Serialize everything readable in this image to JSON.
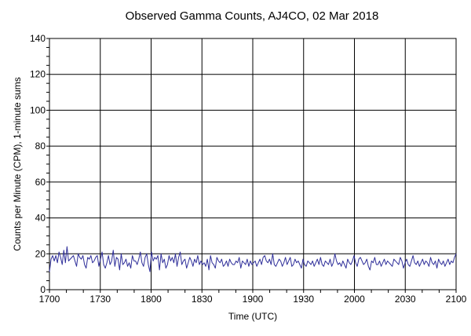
{
  "colors": {
    "background": "#ffffff",
    "grid": "#000000",
    "series": "#2f2f9a",
    "axis": "#000000"
  },
  "chart_data": {
    "type": "line",
    "title": "Observed Gamma Counts, AJ4CO, 02 Mar 2018",
    "xlabel": "Time (UTC)",
    "ylabel": "Counts per Minute (CPM), 1-minute sums",
    "x_range": [
      "17:00",
      "21:00"
    ],
    "ylim": [
      0,
      140
    ],
    "x_ticks": [
      "1700",
      "1730",
      "1800",
      "1830",
      "1900",
      "1930",
      "2000",
      "2030",
      "2100"
    ],
    "y_ticks": [
      "0",
      "20",
      "40",
      "60",
      "80",
      "100",
      "120",
      "140"
    ],
    "grid": true,
    "legend": "none",
    "x_interval_minutes": 1,
    "series": [
      {
        "values": [
          10,
          17,
          19,
          16,
          19,
          15,
          21,
          18,
          14,
          22,
          15,
          24,
          16,
          17,
          18,
          19,
          16,
          13,
          20,
          18,
          17,
          19,
          14,
          12,
          18,
          17,
          19,
          15,
          16,
          18,
          19,
          13,
          17,
          21,
          14,
          12,
          15,
          19,
          14,
          16,
          22,
          13,
          18,
          17,
          11,
          20,
          14,
          15,
          17,
          13,
          15,
          12,
          19,
          16,
          16,
          14,
          17,
          21,
          15,
          13,
          18,
          20,
          14,
          10,
          21,
          16,
          18,
          17,
          19,
          11,
          20,
          15,
          17,
          12,
          14,
          19,
          16,
          18,
          15,
          20,
          13,
          18,
          21,
          14,
          16,
          17,
          12,
          15,
          18,
          16,
          13,
          17,
          15,
          19,
          14,
          16,
          14,
          15,
          13,
          17,
          11,
          19,
          15,
          14,
          12,
          18,
          16,
          15,
          17,
          13,
          14,
          16,
          13,
          17,
          15,
          14,
          14,
          16,
          15,
          18,
          12,
          16,
          15,
          14,
          17,
          13,
          16,
          14,
          15,
          16,
          13,
          15,
          17,
          14,
          18,
          19,
          16,
          15,
          17,
          14,
          20,
          14,
          13,
          15,
          17,
          16,
          13,
          15,
          18,
          14,
          16,
          18,
          13,
          14,
          17,
          15,
          16,
          14,
          12,
          17,
          14,
          13,
          16,
          15,
          14,
          16,
          13,
          15,
          17,
          14,
          18,
          14,
          13,
          16,
          15,
          14,
          17,
          13,
          15,
          20,
          16,
          14,
          15,
          13,
          16,
          14,
          12,
          17,
          15,
          14,
          16,
          19,
          15,
          13,
          17,
          18,
          16,
          14,
          15,
          17,
          13,
          11,
          16,
          15,
          18,
          14,
          14,
          16,
          13,
          15,
          17,
          14,
          16,
          15,
          14,
          13,
          17,
          16,
          15,
          14,
          18,
          16,
          12,
          15,
          17,
          14,
          13,
          16,
          19,
          15,
          14,
          16,
          13,
          15,
          17,
          14,
          16,
          15,
          13,
          18,
          15,
          14,
          16,
          12,
          17,
          15,
          14,
          16,
          13,
          15,
          17,
          14,
          16,
          15,
          18,
          20
        ]
      }
    ]
  }
}
